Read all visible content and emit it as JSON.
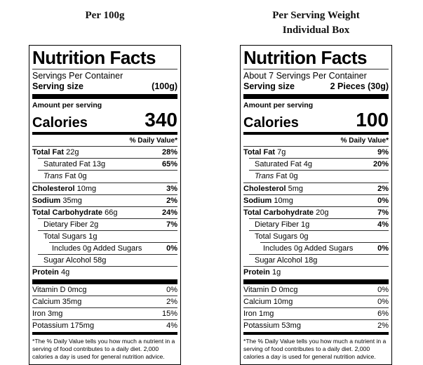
{
  "labels": [
    {
      "header_lines": [
        "Per 100g"
      ],
      "title": "Nutrition Facts",
      "servings_line": "Servings Per Container",
      "serving_size_label": "Serving size",
      "serving_size_value": "(100g)",
      "amount_per_serving": "Amount per serving",
      "calories_label": "Calories",
      "calories_value": "340",
      "daily_value_header": "% Daily Value*",
      "rows": [
        {
          "name": "Total Fat",
          "amount": "22g",
          "dv": "28%",
          "style": "bold",
          "indent": 0
        },
        {
          "name": "Saturated Fat",
          "amount": "13g",
          "dv": "65%",
          "style": "plain",
          "indent": 1
        },
        {
          "name": "Trans",
          "amount": "Fat 0g",
          "dv": "",
          "style": "italic",
          "indent": 1
        },
        {
          "name": "Cholesterol",
          "amount": "10mg",
          "dv": "3%",
          "style": "bold",
          "indent": 0
        },
        {
          "name": "Sodium",
          "amount": "35mg",
          "dv": "2%",
          "style": "bold",
          "indent": 0
        },
        {
          "name": "Total Carbohydrate",
          "amount": "66g",
          "dv": "24%",
          "style": "bold",
          "indent": 0
        },
        {
          "name": "Dietary Fiber",
          "amount": "2g",
          "dv": "7%",
          "style": "plain",
          "indent": 1
        },
        {
          "name": "Total Sugars",
          "amount": "1g",
          "dv": "",
          "style": "plain",
          "indent": 1
        },
        {
          "name": "Includes 0g Added Sugars",
          "amount": "",
          "dv": "0%",
          "style": "plain",
          "indent": 2
        },
        {
          "name": "Sugar Alcohol",
          "amount": "58g",
          "dv": "",
          "style": "plain",
          "indent": 1
        },
        {
          "name": "Protein",
          "amount": "4g",
          "dv": "",
          "style": "bold",
          "indent": 0
        }
      ],
      "vitamins": [
        {
          "name": "Vitamin D",
          "amount": "0mcg",
          "dv": "0%"
        },
        {
          "name": "Calcium",
          "amount": "35mg",
          "dv": "2%"
        },
        {
          "name": "Iron",
          "amount": "3mg",
          "dv": "15%"
        },
        {
          "name": "Potassium",
          "amount": "175mg",
          "dv": "4%"
        }
      ],
      "footnote": "*The % Daily Value tells you how much a nutrient in a serving of food contributes to a daily diet. 2,000 calories a day is used for general nutrition advice."
    },
    {
      "header_lines": [
        "Per Serving Weight",
        "Individual Box"
      ],
      "title": "Nutrition Facts",
      "servings_line": "About 7 Servings Per Container",
      "serving_size_label": "Serving size",
      "serving_size_value": "2 Pieces (30g)",
      "amount_per_serving": "Amount per serving",
      "calories_label": "Calories",
      "calories_value": "100",
      "daily_value_header": "% Daily Value*",
      "rows": [
        {
          "name": "Total Fat",
          "amount": "7g",
          "dv": "9%",
          "style": "bold",
          "indent": 0
        },
        {
          "name": "Saturated Fat",
          "amount": "4g",
          "dv": "20%",
          "style": "plain",
          "indent": 1
        },
        {
          "name": "Trans",
          "amount": "Fat 0g",
          "dv": "",
          "style": "italic",
          "indent": 1
        },
        {
          "name": "Cholesterol",
          "amount": "5mg",
          "dv": "2%",
          "style": "bold",
          "indent": 0
        },
        {
          "name": "Sodium",
          "amount": "10mg",
          "dv": "0%",
          "style": "bold",
          "indent": 0
        },
        {
          "name": "Total Carbohydrate",
          "amount": "20g",
          "dv": "7%",
          "style": "bold",
          "indent": 0
        },
        {
          "name": "Dietary Fiber",
          "amount": "1g",
          "dv": "4%",
          "style": "plain",
          "indent": 1
        },
        {
          "name": "Total Sugars",
          "amount": "0g",
          "dv": "",
          "style": "plain",
          "indent": 1
        },
        {
          "name": "Includes 0g Added Sugars",
          "amount": "",
          "dv": "0%",
          "style": "plain",
          "indent": 2
        },
        {
          "name": "Sugar Alcohol",
          "amount": "18g",
          "dv": "",
          "style": "plain",
          "indent": 1
        },
        {
          "name": "Protein",
          "amount": "1g",
          "dv": "",
          "style": "bold",
          "indent": 0
        }
      ],
      "vitamins": [
        {
          "name": "Vitamin D",
          "amount": "0mcg",
          "dv": "0%"
        },
        {
          "name": "Calcium",
          "amount": "10mg",
          "dv": "0%"
        },
        {
          "name": "Iron",
          "amount": "1mg",
          "dv": "6%"
        },
        {
          "name": "Potassium",
          "amount": "53mg",
          "dv": "2%"
        }
      ],
      "footnote": "*The % Daily Value tells you how much a nutrient in a serving of food contributes to a daily diet. 2,000 calories a day is used for general nutrition advice."
    }
  ]
}
